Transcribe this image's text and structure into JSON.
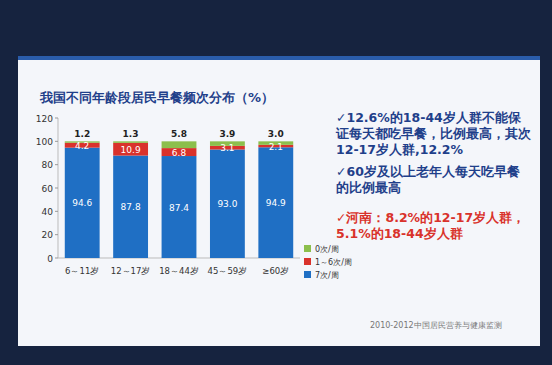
{
  "chart_data": {
    "type": "bar",
    "stacked": true,
    "title": "我国不同年龄段居民早餐频次分布（%）",
    "categories": [
      "6～11岁",
      "12～17岁",
      "18～44岁",
      "45～59岁",
      "≥60岁"
    ],
    "series": [
      {
        "name": "7次/周",
        "color": "#1f6fc4",
        "values": [
          94.6,
          87.8,
          87.4,
          93.0,
          94.9
        ],
        "value_labels": [
          "94.6",
          "87.8",
          "87.4",
          "93.0",
          "94.9"
        ]
      },
      {
        "name": "1～6次/周",
        "color": "#d9322b",
        "values": [
          4.2,
          10.9,
          6.8,
          3.1,
          2.1
        ]
      },
      {
        "name": "0次/周",
        "color": "#8cbf4c",
        "values": [
          1.2,
          1.3,
          5.8,
          3.9,
          3.0
        ],
        "value_labels": [
          "1.2",
          "1.3",
          "5.8",
          "3.9",
          "3.0"
        ]
      }
    ],
    "ylim": [
      0,
      120
    ],
    "yticks": [
      0,
      20,
      40,
      60,
      80,
      100,
      120
    ],
    "grid": false,
    "legend": "bottom-right",
    "data_labels": true,
    "annotations": [
      {
        "text": "✓12.6%的18-44岁人群不能保证每天都吃早餐，比例最高，其次12-17岁人群,12.2%",
        "color": "#1f3f8a"
      },
      {
        "text": "✓60岁及以上老年人每天吃早餐的比例最高",
        "color": "#1f3f8a"
      },
      {
        "text": "✓河南：8.2%的12-17岁人群，5.1%的18-44岁人群",
        "color": "#d9322b"
      }
    ],
    "source": "2010-2012中国居民营养与健康监测"
  }
}
